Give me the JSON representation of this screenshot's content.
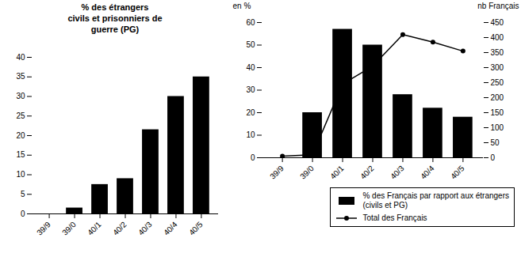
{
  "chart_data": [
    {
      "type": "bar",
      "title": "% des étrangers\ncivils et prisonniers de\nguerre (PG)",
      "categories": [
        "39/9",
        "39/0",
        "40/1",
        "40/2",
        "40/3",
        "40/4",
        "40/5"
      ],
      "values": [
        0.0,
        1.5,
        7.5,
        9.0,
        21.5,
        30.0,
        35.0
      ],
      "color": "#000000",
      "ylim": [
        0,
        40
      ],
      "yticks": [
        0,
        5,
        10,
        15,
        20,
        25,
        30,
        35,
        40
      ]
    },
    {
      "type": "bar",
      "categories": [
        "39/9",
        "39/0",
        "40/1",
        "40/2",
        "40/3",
        "40/4",
        "40/5"
      ],
      "series": [
        {
          "name": "% des Français par rapport aux étrangers\n(civils et PG)",
          "type": "bar",
          "color": "#000000",
          "values": [
            0.0,
            20.0,
            57.0,
            50.0,
            28.0,
            22.0,
            18.0
          ]
        },
        {
          "name": "Total des Français",
          "type": "line",
          "color": "#000000",
          "marker": "circle",
          "axis": "y2",
          "values": [
            5.0,
            10.0,
            245.0,
            305.0,
            410.0,
            385.0,
            355.0
          ]
        }
      ],
      "ylabel": "en %",
      "y2label": "nb Français",
      "ylim": [
        0,
        60
      ],
      "yticks": [
        0,
        10,
        20,
        30,
        40,
        50,
        60
      ],
      "y2lim": [
        0,
        450
      ],
      "y2ticks": [
        0,
        50,
        100,
        150,
        200,
        250,
        300,
        350,
        400,
        450
      ],
      "legend": "lower right"
    }
  ]
}
